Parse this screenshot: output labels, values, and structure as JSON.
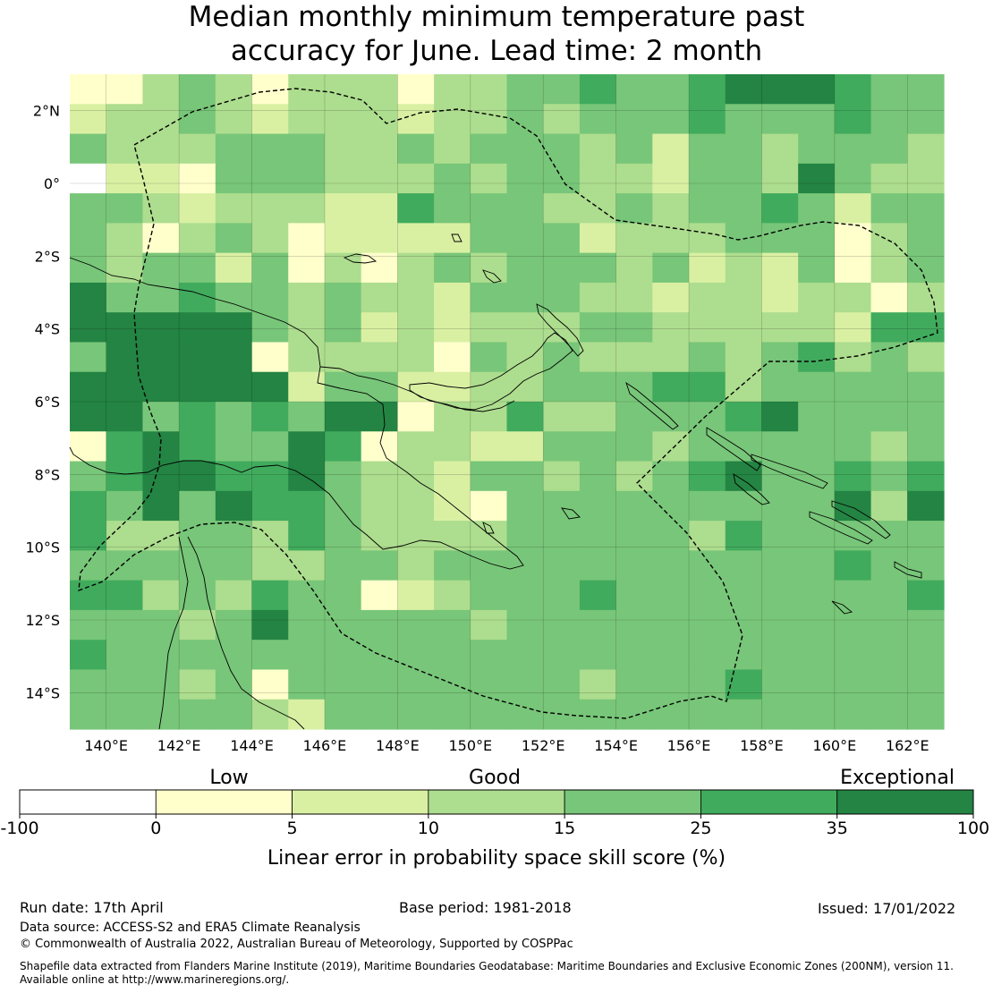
{
  "title_line1": "Median monthly minimum temperature past",
  "title_line2": "accuracy for June. Lead time: 2 month",
  "map": {
    "lon_range": [
      139,
      163
    ],
    "lat_range": [
      -15,
      3
    ],
    "lon_ticks": [
      "140°E",
      "142°E",
      "144°E",
      "146°E",
      "148°E",
      "150°E",
      "152°E",
      "154°E",
      "156°E",
      "158°E",
      "160°E",
      "162°E"
    ],
    "lat_ticks": [
      "2°N",
      "0°",
      "2°S",
      "4°S",
      "6°S",
      "8°S",
      "10°S",
      "12°S",
      "14°S"
    ],
    "grid_rows": [
      "A1343A3331334454456665444",
      "B3343B3332334344454445444",
      "4333444334344434B44344434",
      "0B21444333434433B44364334",
      "4432333225444334344542444",
      "43A3431B22B4442333444C344",
      "43442413A343444342324C344",
      "6445443433D4443323323313D",
      "6666643423233344333332555",
      "46666A3333A434333434534334",
      "666666B4422334445534444444",
      "664545466A3353344456444455",
      "A5654465A3322444344444345",
      "4566556433244343456445454",
      "54646554332A4444444446364",
      "5334435433334444435444445",
      "4444433443444444444445445",
      "55343544A2344454444444454",
      "444346444443444444444444",
      "5444444444444444444444445",
      "44434A4444444434445444444",
      "4444432444444444444444444"
    ]
  },
  "colorbar": {
    "categories": [
      "Low",
      "Good",
      "Exceptional"
    ],
    "ticks": [
      "-100",
      "0",
      "5",
      "10",
      "15",
      "25",
      "35",
      "100"
    ],
    "colors": [
      "#ffffff",
      "#ffffcc",
      "#d9f0a3",
      "#addd8e",
      "#78c679",
      "#41ab5d",
      "#238443"
    ],
    "label": "Linear error in probability space skill score (%)"
  },
  "footer": {
    "run_date": "Run date: 17th April",
    "base_period": "Base period: 1981-2018",
    "issued": "Issued: 17/01/2022",
    "data_source": "Data source: ACCESS-S2 and ERA5 Climate Reanalysis",
    "copyright": "© Commonwealth of Australia 2022, Australian Bureau of Meteorology, Supported by COSPPac",
    "shapefile_line1": "Shapefile data extracted from Flanders Marine Institute (2019), Maritime Boundaries Geodatabase: Maritime Boundaries and Exclusive Economic Zones (200NM), version 11.",
    "shapefile_line2": "Available online at http://www.marineregions.org/."
  }
}
